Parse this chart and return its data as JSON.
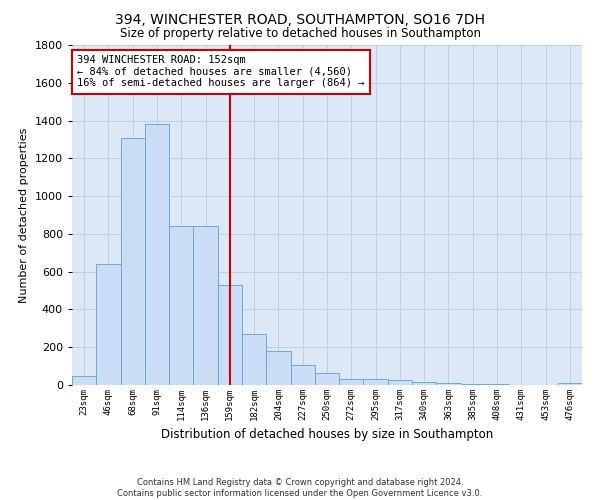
{
  "title_line1": "394, WINCHESTER ROAD, SOUTHAMPTON, SO16 7DH",
  "title_line2": "Size of property relative to detached houses in Southampton",
  "xlabel": "Distribution of detached houses by size in Southampton",
  "ylabel": "Number of detached properties",
  "footer_line1": "Contains HM Land Registry data © Crown copyright and database right 2024.",
  "footer_line2": "Contains public sector information licensed under the Open Government Licence v3.0.",
  "bar_color": "#c9ddf5",
  "bar_edge_color": "#6fa8dc",
  "grid_color": "#c0cfe0",
  "annotation_box_color": "#cc0000",
  "vline_color": "#cc0000",
  "background_color": "#dce8f5",
  "categories": [
    "23sqm",
    "46sqm",
    "68sqm",
    "91sqm",
    "114sqm",
    "136sqm",
    "159sqm",
    "182sqm",
    "204sqm",
    "227sqm",
    "250sqm",
    "272sqm",
    "295sqm",
    "317sqm",
    "340sqm",
    "363sqm",
    "385sqm",
    "408sqm",
    "431sqm",
    "453sqm",
    "476sqm"
  ],
  "values": [
    50,
    640,
    1310,
    1380,
    840,
    840,
    530,
    270,
    180,
    105,
    65,
    30,
    30,
    25,
    18,
    12,
    5,
    3,
    2,
    1,
    10
  ],
  "vline_index": 6,
  "annotation_line1": "394 WINCHESTER ROAD: 152sqm",
  "annotation_line2": "← 84% of detached houses are smaller (4,560)",
  "annotation_line3": "16% of semi-detached houses are larger (864) →",
  "ylim": [
    0,
    1800
  ],
  "yticks": [
    0,
    200,
    400,
    600,
    800,
    1000,
    1200,
    1400,
    1600,
    1800
  ]
}
